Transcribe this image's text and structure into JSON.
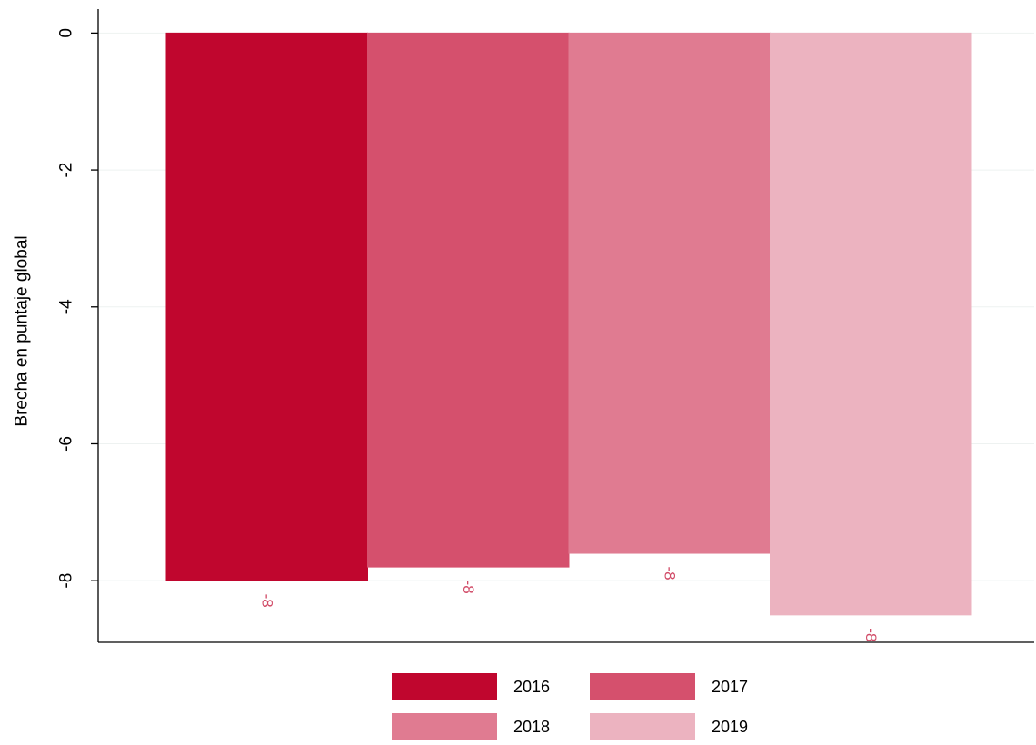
{
  "chart_data": {
    "type": "bar",
    "title": "",
    "xlabel": "",
    "ylabel": "Brecha en puntaje global",
    "categories": [
      "2016",
      "2017",
      "2018",
      "2019"
    ],
    "values": [
      -8.0,
      -7.8,
      -7.6,
      -8.5
    ],
    "data_labels": [
      "-8",
      "-8",
      "-8",
      "-8"
    ],
    "ylim": [
      -8.9,
      0.35
    ],
    "yticks": [
      0,
      -2,
      -4,
      -6,
      -8
    ],
    "ytick_labels": [
      "0",
      "-2",
      "-4",
      "-6",
      "-8"
    ],
    "grid": true,
    "legend": {
      "placement": "bottom",
      "entries": [
        "2016",
        "2017",
        "2018",
        "2019"
      ]
    },
    "colors": [
      "#c0062e",
      "#d5506d",
      "#e07b91",
      "#ecb3c0"
    ],
    "label_color": "#d14b67"
  }
}
